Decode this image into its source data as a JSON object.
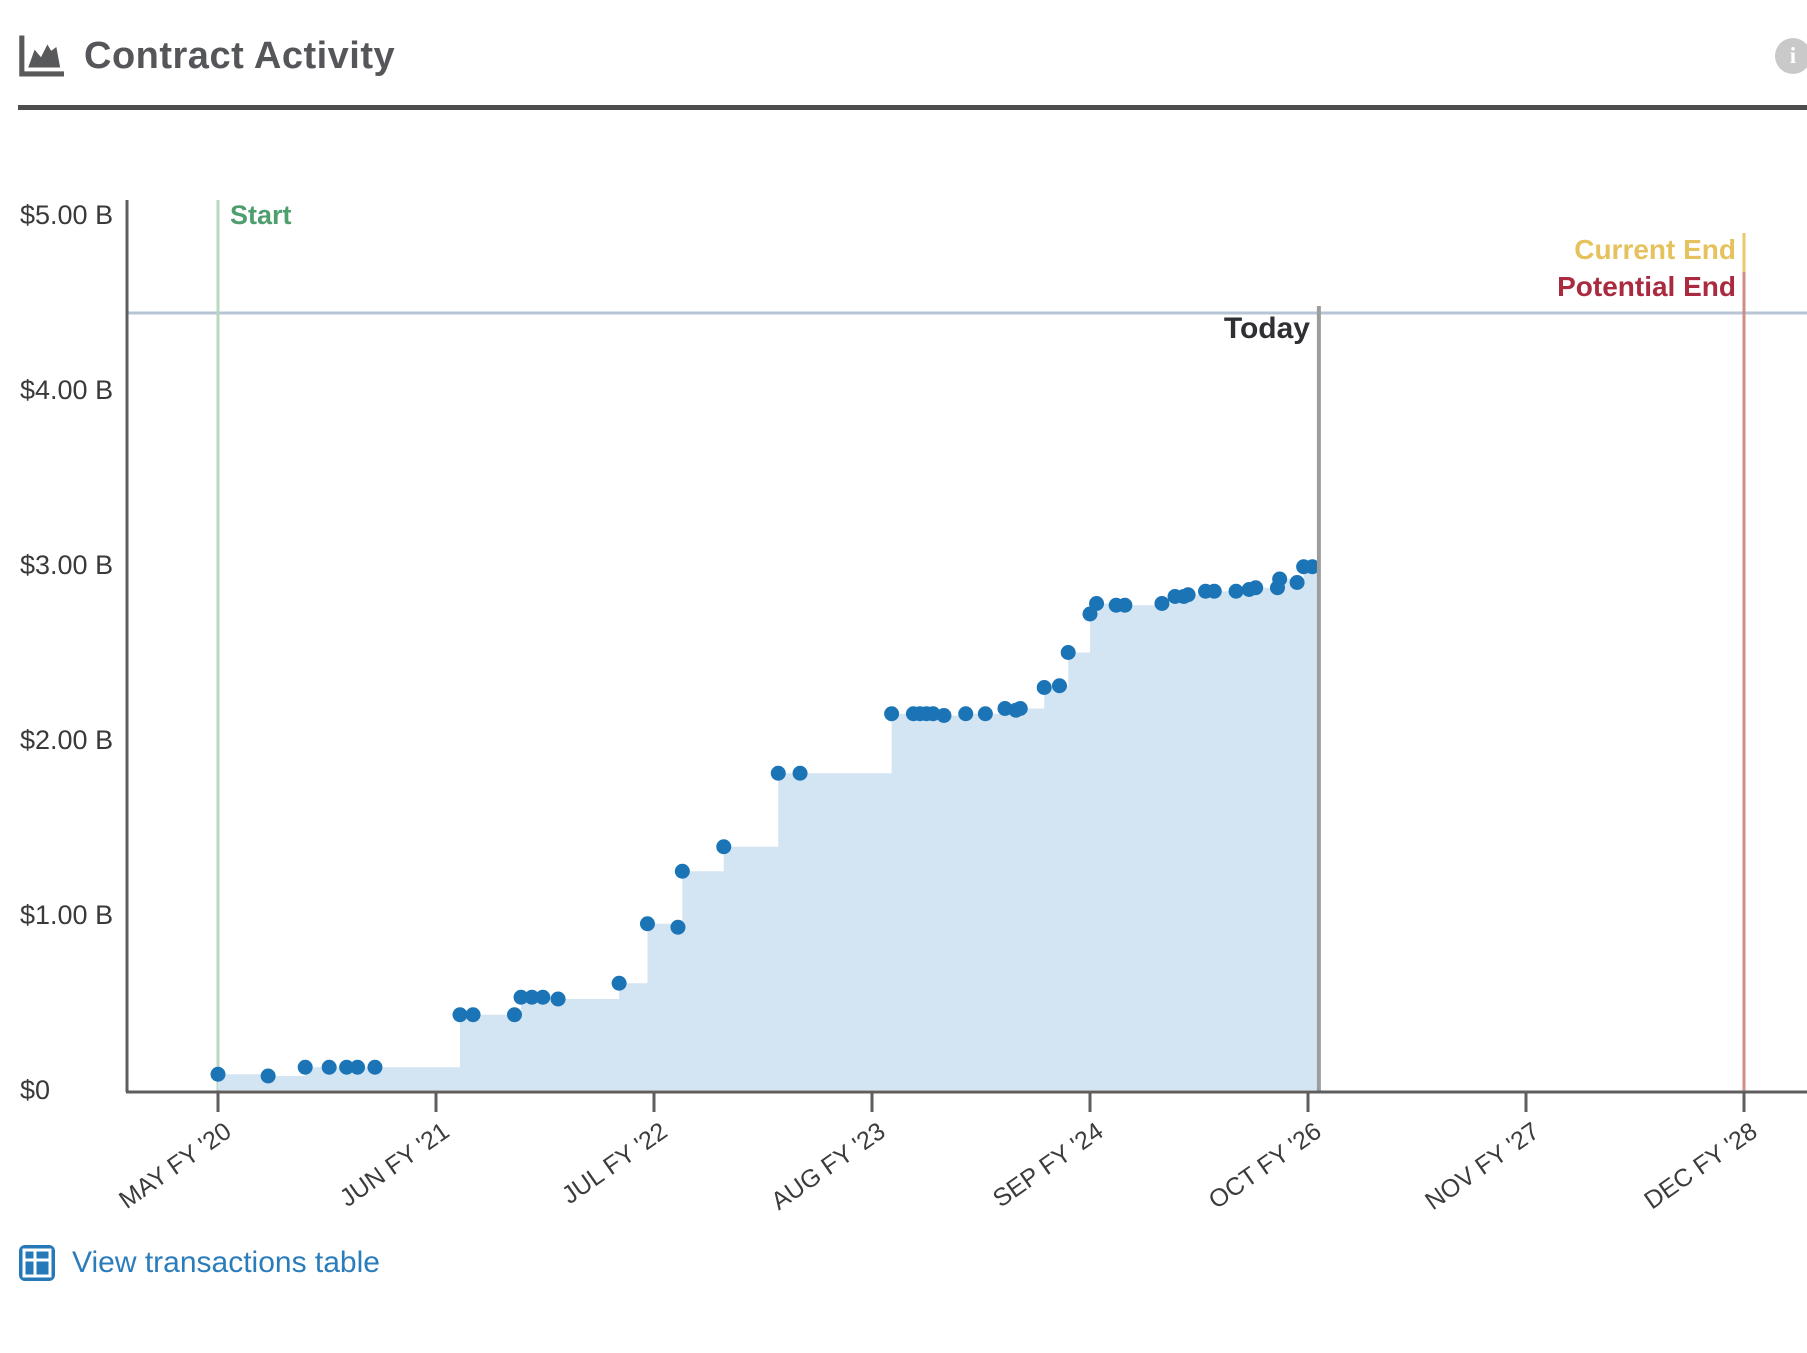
{
  "header": {
    "title": "Contract Activity",
    "info_icon": "i"
  },
  "chart_data": {
    "type": "area",
    "subtype": "step-area-with-scatter-points",
    "title": "Contract Activity",
    "xlabel": "",
    "ylabel": "",
    "y_unit": "billions USD",
    "ylim": [
      0,
      5
    ],
    "y_tick_labels": [
      "$5.00 B",
      "$4.00 B",
      "$3.00 B",
      "$2.00 B",
      "$1.00 B",
      "$0"
    ],
    "y_tick_values": [
      5,
      4,
      3,
      2,
      1,
      0
    ],
    "x_tick_labels": [
      "MAY FY '20",
      "JUN FY '21",
      "JUL FY '22",
      "AUG FY '23",
      "SEP FY '24",
      "OCT FY '26",
      "NOV FY '27",
      "DEC FY '28"
    ],
    "grid": false,
    "legend": false,
    "area_color": "#d3e4f2",
    "point_color": "#1b74b6",
    "ceiling_line": {
      "value": 4.44,
      "color": "#b6c4d6"
    },
    "markers": {
      "start": {
        "label": "Start",
        "x": 0.0,
        "line_color": "#b9d8c2",
        "label_color": "#4f9e6e"
      },
      "today": {
        "label": "Today",
        "x": 5.05,
        "line_color": "#9d9d9d",
        "label_color": "#2f3033"
      },
      "current_end": {
        "label": "Current End",
        "x": 7.0,
        "line_color": "#e8c868",
        "label_color": "#e5c25d"
      },
      "potential_end": {
        "label": "Potential End",
        "x": 7.0,
        "line_color": "#cf8d86",
        "label_color": "#aa2b40"
      }
    },
    "points_note": "x = years after MAY FY '20 tick (1 tick spacing = 1 unit), v = cumulative $B",
    "points": [
      [
        0.0,
        0.09
      ],
      [
        0.23,
        0.08
      ],
      [
        0.4,
        0.13
      ],
      [
        0.51,
        0.13
      ],
      [
        0.59,
        0.13
      ],
      [
        0.64,
        0.13
      ],
      [
        0.72,
        0.13
      ],
      [
        1.11,
        0.43
      ],
      [
        1.17,
        0.43
      ],
      [
        1.36,
        0.43
      ],
      [
        1.39,
        0.53
      ],
      [
        1.44,
        0.53
      ],
      [
        1.49,
        0.53
      ],
      [
        1.56,
        0.52
      ],
      [
        1.84,
        0.61
      ],
      [
        1.97,
        0.95
      ],
      [
        2.11,
        0.93
      ],
      [
        2.13,
        1.25
      ],
      [
        2.32,
        1.39
      ],
      [
        2.57,
        1.81
      ],
      [
        2.67,
        1.81
      ],
      [
        3.09,
        2.15
      ],
      [
        3.19,
        2.15
      ],
      [
        3.22,
        2.15
      ],
      [
        3.25,
        2.15
      ],
      [
        3.28,
        2.15
      ],
      [
        3.33,
        2.14
      ],
      [
        3.43,
        2.15
      ],
      [
        3.52,
        2.15
      ],
      [
        3.61,
        2.18
      ],
      [
        3.66,
        2.17
      ],
      [
        3.68,
        2.18
      ],
      [
        3.79,
        2.3
      ],
      [
        3.86,
        2.31
      ],
      [
        3.9,
        2.5
      ],
      [
        4.0,
        2.72
      ],
      [
        4.03,
        2.78
      ],
      [
        4.12,
        2.77
      ],
      [
        4.16,
        2.77
      ],
      [
        4.33,
        2.78
      ],
      [
        4.39,
        2.82
      ],
      [
        4.43,
        2.82
      ],
      [
        4.45,
        2.83
      ],
      [
        4.53,
        2.85
      ],
      [
        4.57,
        2.85
      ],
      [
        4.67,
        2.85
      ],
      [
        4.73,
        2.86
      ],
      [
        4.76,
        2.87
      ],
      [
        4.86,
        2.87
      ],
      [
        4.87,
        2.92
      ],
      [
        4.95,
        2.9
      ],
      [
        4.98,
        2.99
      ],
      [
        5.02,
        2.99
      ]
    ]
  },
  "footer": {
    "link_label": "View transactions table"
  }
}
